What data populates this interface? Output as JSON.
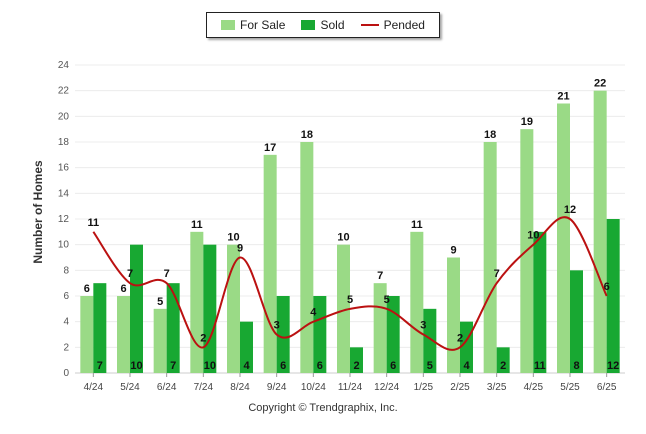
{
  "chart_data": {
    "type": "bar",
    "title": "",
    "xlabel": "",
    "ylabel": "Number of Homes",
    "ylim": [
      0,
      24
    ],
    "yticks": [
      0,
      2,
      4,
      6,
      8,
      10,
      12,
      14,
      16,
      18,
      20,
      22,
      24
    ],
    "grid": true,
    "legend_position": "top-center",
    "categories": [
      "4/24",
      "5/24",
      "6/24",
      "7/24",
      "8/24",
      "9/24",
      "10/24",
      "11/24",
      "12/24",
      "1/25",
      "2/25",
      "3/25",
      "4/25",
      "5/25",
      "6/25"
    ],
    "series": [
      {
        "name": "For Sale",
        "kind": "bar",
        "color": "#9ada86",
        "values": [
          6,
          6,
          5,
          11,
          10,
          17,
          18,
          10,
          7,
          11,
          9,
          18,
          19,
          21,
          22
        ]
      },
      {
        "name": "Sold",
        "kind": "bar",
        "color": "#18a832",
        "values": [
          7,
          10,
          7,
          10,
          4,
          6,
          6,
          2,
          6,
          5,
          4,
          2,
          11,
          8,
          12
        ]
      },
      {
        "name": "Pended",
        "kind": "line",
        "color": "#bb1111",
        "values": [
          11,
          7,
          7,
          2,
          9,
          3,
          4,
          5,
          5,
          3,
          2,
          7,
          10,
          12,
          6
        ]
      }
    ]
  },
  "footer": {
    "copyright": "Copyright © Trendgraphix, Inc."
  }
}
